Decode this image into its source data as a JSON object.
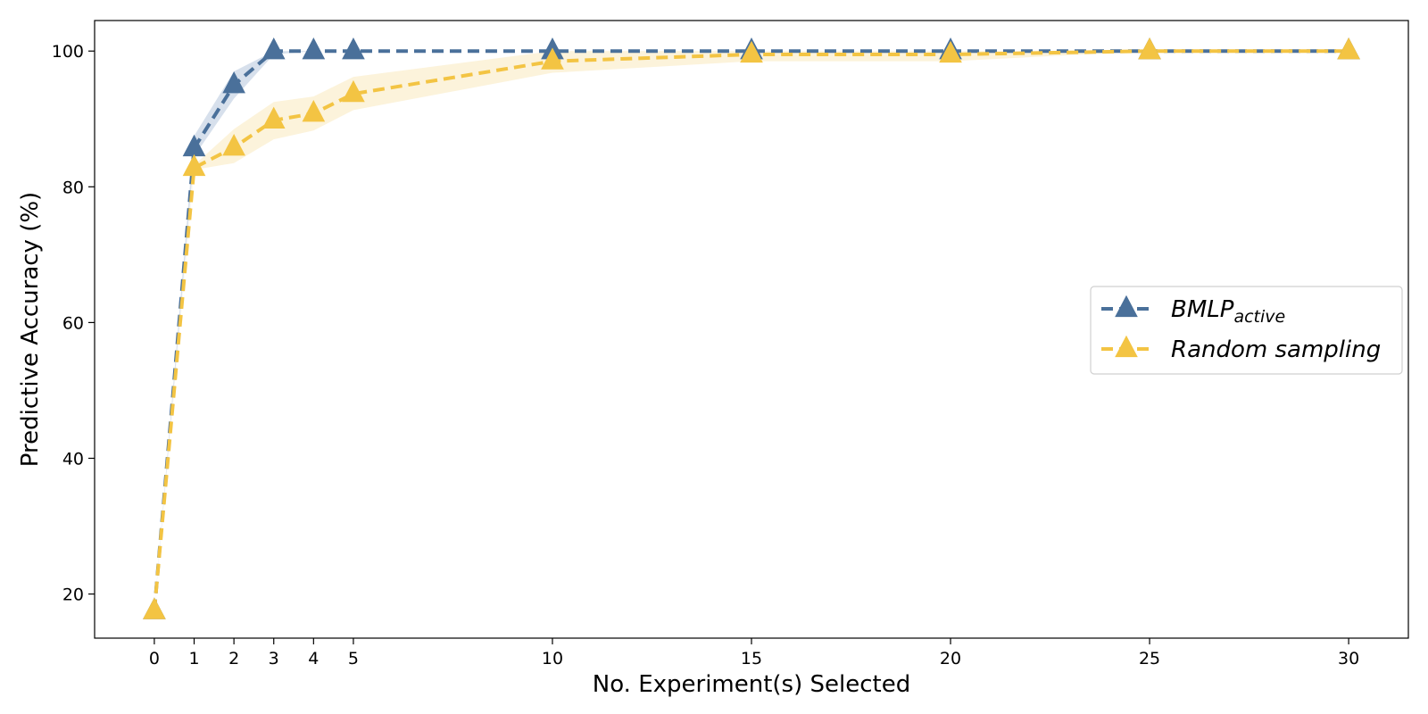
{
  "chart_data": {
    "type": "line",
    "xlabel": "No. Experiment(s) Selected",
    "ylabel": "Predictive Accuracy (%)",
    "xlim": [
      -1.5,
      31.5
    ],
    "ylim": [
      13.5,
      104.5
    ],
    "xticks": [
      0,
      1,
      2,
      3,
      4,
      5,
      10,
      15,
      20,
      25,
      30
    ],
    "yticks": [
      20,
      40,
      60,
      80,
      100
    ],
    "grid": false,
    "legend_position": "center-right",
    "series": [
      {
        "name_main": "BMLP",
        "name_sub": "active",
        "color": "#4a709a",
        "band_color": "#c9d6e6",
        "x": [
          0,
          1,
          2,
          3,
          4,
          5,
          10,
          15,
          20,
          25,
          30
        ],
        "y": [
          17.5,
          85.7,
          95,
          100,
          100,
          100,
          100,
          100,
          100,
          100,
          100
        ],
        "lower": [
          17.5,
          84.5,
          93,
          99.5,
          100,
          100,
          100,
          100,
          100,
          100,
          100
        ],
        "upper": [
          17.5,
          87.5,
          97,
          100,
          100,
          100,
          100,
          100,
          100,
          100,
          100
        ]
      },
      {
        "name_main": "Random sampling",
        "name_sub": "",
        "color": "#f3c443",
        "band_color": "#fbefcf",
        "x": [
          0,
          1,
          2,
          3,
          4,
          5,
          10,
          15,
          20,
          25,
          30
        ],
        "y": [
          17.5,
          82.8,
          85.8,
          89.8,
          90.8,
          93.7,
          98.5,
          99.5,
          99.5,
          100,
          100
        ],
        "lower": [
          17.5,
          82.5,
          83.5,
          87,
          88.3,
          91.3,
          96.8,
          98.5,
          98.5,
          100,
          100
        ],
        "upper": [
          17.5,
          83.2,
          88.5,
          92.5,
          93.3,
          96.2,
          100,
          100,
          100,
          100,
          100
        ]
      }
    ]
  }
}
